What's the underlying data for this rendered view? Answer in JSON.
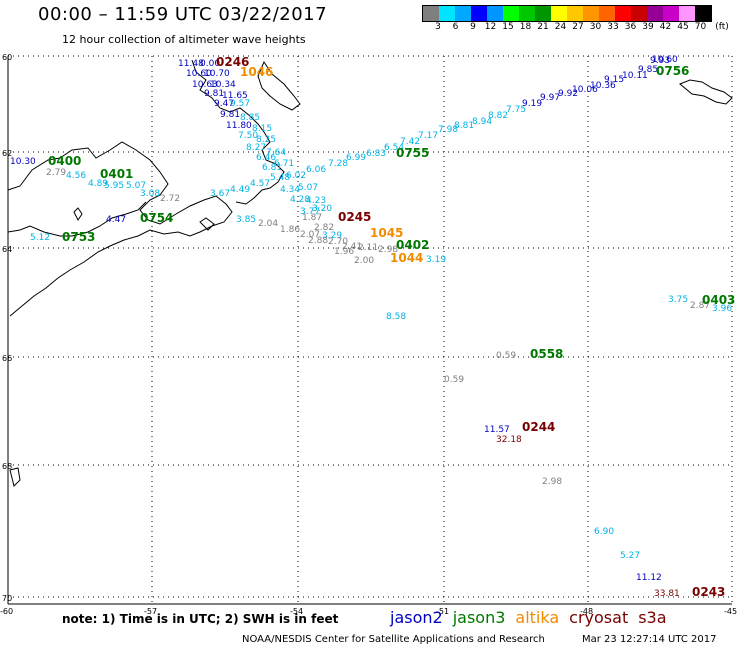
{
  "title": "00:00 – 11:59 UTC 03/22/2017",
  "subtitle": "12 hour collection of altimeter wave heights",
  "colorbar": {
    "colors": [
      "#7f7f7f",
      "#00e5ff",
      "#00a8ff",
      "#0000ff",
      "#0096ff",
      "#00ff00",
      "#00c800",
      "#009600",
      "#ffff00",
      "#ffc800",
      "#ff9600",
      "#ff6400",
      "#ff0000",
      "#c80000",
      "#960096",
      "#c800c8",
      "#ff96ff",
      "#000000"
    ],
    "labels": [
      "3",
      "6",
      "9",
      "12",
      "15",
      "18",
      "21",
      "24",
      "27",
      "30",
      "33",
      "36",
      "39",
      "42",
      "45",
      "70",
      "(ft)"
    ],
    "unit": "(ft)"
  },
  "axes": {
    "lat_labels": [
      "60",
      "62",
      "64",
      "66",
      "68",
      "70"
    ],
    "lon_labels": [
      "-60",
      "-57",
      "-54",
      "-51",
      "-48",
      "-45"
    ]
  },
  "satellites": {
    "jason2": "#0000c0",
    "jason3": "#007800",
    "altika": "#f08c00",
    "cryosat": "#780000",
    "s3a": "#780000",
    "swh_light": "#00b4e6",
    "swh_gray": "#808080"
  },
  "labels": [
    {
      "text": "11.48",
      "c": "jason2"
    },
    {
      "text": "0.00",
      "c": "jason2"
    },
    {
      "text": "0246",
      "c": "cryosat"
    },
    {
      "text": "10.60",
      "c": "jason2"
    },
    {
      "text": "10.70",
      "c": "jason2"
    },
    {
      "text": "1046",
      "c": "altika"
    },
    {
      "text": "10.63",
      "c": "jason2"
    },
    {
      "text": "10.34",
      "c": "jason2"
    },
    {
      "text": "9.81",
      "c": "jason2"
    },
    {
      "text": "11.65",
      "c": "jason2"
    },
    {
      "text": "9.47",
      "c": "jason2"
    },
    {
      "text": "9.57",
      "c": "swh_light"
    },
    {
      "text": "9.81",
      "c": "jason2"
    },
    {
      "text": "8.85",
      "c": "swh_light"
    },
    {
      "text": "11.80",
      "c": "jason2"
    },
    {
      "text": "8.15",
      "c": "swh_light"
    },
    {
      "text": "7.50",
      "c": "swh_light"
    },
    {
      "text": "8.25",
      "c": "swh_light"
    },
    {
      "text": "8.27",
      "c": "swh_light"
    },
    {
      "text": "7.64",
      "c": "swh_light"
    },
    {
      "text": "6.46",
      "c": "swh_light"
    },
    {
      "text": "6.71",
      "c": "swh_light"
    },
    {
      "text": "6.81",
      "c": "swh_light"
    },
    {
      "text": "6.06",
      "c": "swh_light"
    },
    {
      "text": "5.48",
      "c": "swh_light"
    },
    {
      "text": "6.02",
      "c": "swh_light"
    },
    {
      "text": "4.57",
      "c": "swh_light"
    },
    {
      "text": "4.34",
      "c": "swh_light"
    },
    {
      "text": "5.07",
      "c": "swh_light"
    },
    {
      "text": "4.49",
      "c": "swh_light"
    },
    {
      "text": "3.67",
      "c": "swh_light"
    },
    {
      "text": "4.28",
      "c": "swh_light"
    },
    {
      "text": "4.23",
      "c": "swh_light"
    },
    {
      "text": "3.85",
      "c": "swh_light"
    },
    {
      "text": "2.04",
      "c": "swh_gray"
    },
    {
      "text": "1.86",
      "c": "swh_gray"
    },
    {
      "text": "3.77",
      "c": "swh_light"
    },
    {
      "text": "3.20",
      "c": "swh_light"
    },
    {
      "text": "1.87",
      "c": "swh_gray"
    },
    {
      "text": "2.82",
      "c": "swh_gray"
    },
    {
      "text": "2.07",
      "c": "swh_gray"
    },
    {
      "text": "3.29",
      "c": "swh_light"
    },
    {
      "text": "2.88",
      "c": "swh_gray"
    },
    {
      "text": "2.70",
      "c": "swh_gray"
    },
    {
      "text": "2.41",
      "c": "swh_gray"
    },
    {
      "text": "1.96",
      "c": "swh_gray"
    },
    {
      "text": "2.11",
      "c": "swh_gray"
    },
    {
      "text": "2.98",
      "c": "swh_gray"
    },
    {
      "text": "2.00",
      "c": "swh_gray"
    },
    {
      "text": "3.19",
      "c": "swh_light"
    },
    {
      "text": "0245",
      "c": "cryosat"
    },
    {
      "text": "1045",
      "c": "altika"
    },
    {
      "text": "0402",
      "c": "jason3"
    },
    {
      "text": "1044",
      "c": "altika"
    },
    {
      "text": "7.28",
      "c": "swh_light"
    },
    {
      "text": "6.99",
      "c": "swh_light"
    },
    {
      "text": "6.83",
      "c": "swh_light"
    },
    {
      "text": "6.54",
      "c": "swh_light"
    },
    {
      "text": "7.42",
      "c": "swh_light"
    },
    {
      "text": "0755",
      "c": "jason3"
    },
    {
      "text": "7.17",
      "c": "swh_light"
    },
    {
      "text": "7.98",
      "c": "swh_light"
    },
    {
      "text": "8.81",
      "c": "swh_light"
    },
    {
      "text": "8.94",
      "c": "swh_light"
    },
    {
      "text": "8.82",
      "c": "swh_light"
    },
    {
      "text": "7.75",
      "c": "swh_light"
    },
    {
      "text": "9.19",
      "c": "jason2"
    },
    {
      "text": "9.97",
      "c": "jason2"
    },
    {
      "text": "9.92",
      "c": "jason2"
    },
    {
      "text": "10.06",
      "c": "jason2"
    },
    {
      "text": "10.36",
      "c": "jason2"
    },
    {
      "text": "9.15",
      "c": "jason2"
    },
    {
      "text": "10.11",
      "c": "jason2"
    },
    {
      "text": "9.85",
      "c": "jason2"
    },
    {
      "text": "9.93",
      "c": "jason2"
    },
    {
      "text": "10.60",
      "c": "jason2"
    },
    {
      "text": "0756",
      "c": "jason3"
    },
    {
      "text": "10.30",
      "c": "jason2"
    },
    {
      "text": "0400",
      "c": "jason3"
    },
    {
      "text": "2.79",
      "c": "swh_gray"
    },
    {
      "text": "4.56",
      "c": "swh_light"
    },
    {
      "text": "4.89",
      "c": "swh_light"
    },
    {
      "text": "0401",
      "c": "jason3"
    },
    {
      "text": "5.95",
      "c": "swh_light"
    },
    {
      "text": "5.07",
      "c": "swh_light"
    },
    {
      "text": "3.08",
      "c": "swh_light"
    },
    {
      "text": "2.72",
      "c": "swh_gray"
    },
    {
      "text": "4.47",
      "c": "jason2"
    },
    {
      "text": "0754",
      "c": "jason3"
    },
    {
      "text": "5.12",
      "c": "swh_light"
    },
    {
      "text": "0753",
      "c": "jason3"
    },
    {
      "text": "8.58",
      "c": "swh_light"
    },
    {
      "text": "3.75",
      "c": "swh_light"
    },
    {
      "text": "2.87",
      "c": "swh_gray"
    },
    {
      "text": "3.96",
      "c": "swh_light"
    },
    {
      "text": "0403",
      "c": "jason3"
    },
    {
      "text": "0.59",
      "c": "swh_gray"
    },
    {
      "text": "0558",
      "c": "jason3"
    },
    {
      "text": "0.59",
      "c": "swh_gray"
    },
    {
      "text": "11.57",
      "c": "jason2"
    },
    {
      "text": "0244",
      "c": "cryosat"
    },
    {
      "text": "32.18",
      "c": "cryosat"
    },
    {
      "text": "2.98",
      "c": "swh_gray"
    },
    {
      "text": "6.90",
      "c": "swh_light"
    },
    {
      "text": "5.27",
      "c": "swh_light"
    },
    {
      "text": "11.12",
      "c": "jason2"
    },
    {
      "text": "33.81",
      "c": "cryosat"
    },
    {
      "text": "0243",
      "c": "cryosat"
    }
  ],
  "note": "note:  1) Time is in UTC;  2) SWH is in feet",
  "legend": [
    {
      "label": "jason2",
      "c": "jason2"
    },
    {
      "label": "jason3",
      "c": "jason3"
    },
    {
      "label": "altika",
      "c": "altika"
    },
    {
      "label": "cryosat",
      "c": "cryosat"
    },
    {
      "label": "s3a",
      "c": "s3a"
    }
  ],
  "credit": "NOAA/NESDIS Center for Satellite Applications and Research",
  "timestamp": "Mar 23 12:27:14 UTC 2017"
}
